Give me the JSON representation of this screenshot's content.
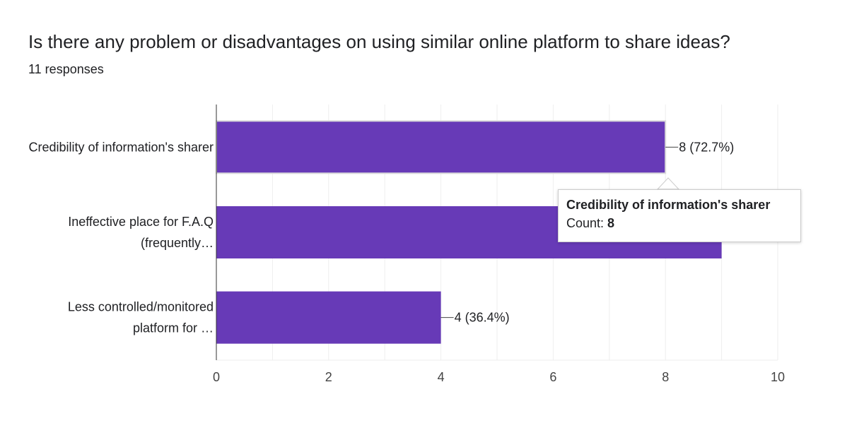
{
  "header": {
    "question": "Is there any problem or disadvantages on using similar online platform to share ideas?",
    "responses": "11 responses"
  },
  "chart_data": {
    "type": "bar",
    "orientation": "horizontal",
    "categories": [
      [
        "Credibility of information's sharer"
      ],
      [
        "Ineffective place for F.A.Q",
        "(frequently…"
      ],
      [
        "Less controlled/monitored",
        "platform for …"
      ]
    ],
    "values": [
      8,
      9,
      4
    ],
    "data_labels": [
      "8 (72.7%)",
      "",
      "4 (36.4%)"
    ],
    "xlim": [
      0,
      10
    ],
    "xticks": [
      0,
      2,
      4,
      6,
      8,
      10
    ],
    "grid": true,
    "bar_color": "#673ab7"
  },
  "tooltip": {
    "title": "Credibility of information's sharer",
    "count_label": "Count: ",
    "count_value": "8"
  }
}
